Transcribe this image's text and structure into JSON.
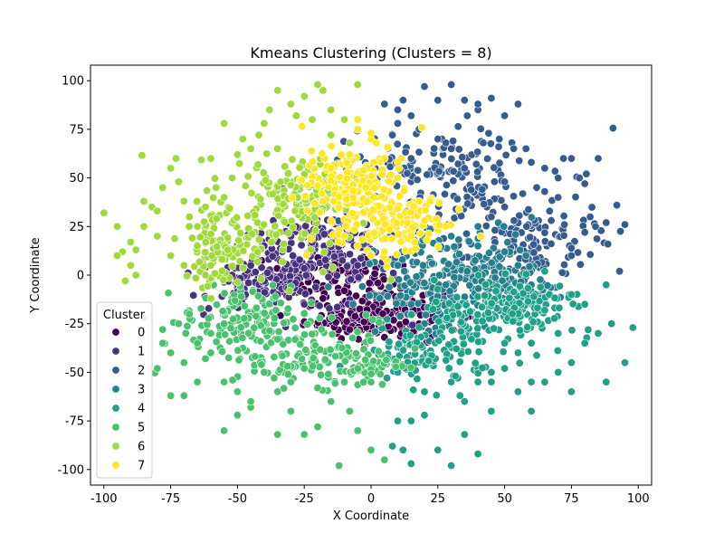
{
  "chart_data": {
    "type": "scatter",
    "title": "Kmeans Clustering (Clusters = 8)",
    "xlabel": "X Coordinate",
    "ylabel": "Y Coordinate",
    "xlim": [
      -105,
      105
    ],
    "ylim": [
      -108,
      108
    ],
    "x_ticks": [
      -100,
      -75,
      -50,
      -25,
      0,
      25,
      50,
      75,
      100
    ],
    "y_ticks": [
      -100,
      -75,
      -50,
      -25,
      0,
      25,
      50,
      75,
      100
    ],
    "grid": false,
    "legend": {
      "title": "Cluster",
      "location": "lower-left",
      "entries": [
        "0",
        "1",
        "2",
        "3",
        "4",
        "5",
        "6",
        "7"
      ]
    },
    "colors": {
      "0": "#440154",
      "1": "#46327e",
      "2": "#365c8d",
      "3": "#277f8e",
      "4": "#1fa187",
      "5": "#4ac16d",
      "6": "#9fda3a",
      "7": "#fde725"
    },
    "series": [
      {
        "name": "0",
        "regions": [
          [
            -12,
            0,
            14,
            6
          ],
          [
            10,
            -18,
            12,
            8
          ],
          [
            -5,
            -22,
            10,
            5
          ]
        ],
        "points": [
          [
            -10,
            -8
          ],
          [
            -15,
            -20
          ],
          [
            -8,
            -28
          ],
          [
            0,
            -30
          ],
          [
            15,
            -20
          ],
          [
            20,
            -5
          ],
          [
            12,
            5
          ],
          [
            -2,
            8
          ],
          [
            -13,
            2
          ],
          [
            5,
            -32
          ],
          [
            -18,
            -12
          ],
          [
            18,
            -25
          ]
        ]
      },
      {
        "name": "1",
        "regions": [
          [
            -25,
            5,
            18,
            12
          ],
          [
            -40,
            -5,
            10,
            6
          ],
          [
            -15,
            18,
            10,
            6
          ]
        ],
        "points": [
          [
            -45,
            5
          ],
          [
            -50,
            -5
          ],
          [
            -40,
            15
          ],
          [
            -30,
            20
          ],
          [
            -20,
            25
          ],
          [
            -5,
            15
          ],
          [
            -35,
            -10
          ],
          [
            -52,
            0
          ],
          [
            -25,
            -15
          ],
          [
            -10,
            28
          ],
          [
            -47,
            -10
          ],
          [
            -5,
            5
          ]
        ]
      },
      {
        "name": "2",
        "regions": [
          [
            40,
            35,
            25,
            20
          ],
          [
            60,
            15,
            12,
            10
          ],
          [
            20,
            55,
            15,
            10
          ]
        ],
        "points": [
          [
            5,
            88
          ],
          [
            10,
            85
          ],
          [
            15,
            82
          ],
          [
            18,
            75
          ],
          [
            20,
            97
          ],
          [
            25,
            90
          ],
          [
            30,
            98
          ],
          [
            35,
            90
          ],
          [
            40,
            85
          ],
          [
            40,
            88
          ],
          [
            45,
            91
          ],
          [
            50,
            82
          ],
          [
            55,
            88
          ],
          [
            58,
            65
          ],
          [
            60,
            58
          ],
          [
            65,
            55
          ],
          [
            70,
            50
          ],
          [
            72,
            60
          ],
          [
            75,
            60
          ],
          [
            78,
            50
          ],
          [
            80,
            47
          ],
          [
            82,
            30
          ],
          [
            85,
            60
          ],
          [
            88,
            27
          ],
          [
            92,
            36
          ],
          [
            95,
            26
          ],
          [
            93,
            2
          ],
          [
            75,
            10
          ],
          [
            80,
            22
          ],
          [
            70,
            40
          ],
          [
            65,
            43
          ],
          [
            50,
            35
          ],
          [
            45,
            30
          ],
          [
            25,
            70
          ],
          [
            28,
            68
          ],
          [
            30,
            65
          ],
          [
            35,
            55
          ],
          [
            15,
            60
          ],
          [
            8,
            72
          ],
          [
            12,
            90
          ],
          [
            10,
            78
          ],
          [
            36,
            82
          ],
          [
            42,
            68
          ],
          [
            48,
            70
          ],
          [
            50,
            48
          ],
          [
            62,
            45
          ],
          [
            84,
            25
          ]
        ]
      },
      {
        "name": "3",
        "regions": [
          [
            35,
            5,
            15,
            12
          ],
          [
            20,
            -10,
            12,
            10
          ],
          [
            50,
            -5,
            8,
            6
          ]
        ],
        "points": [
          [
            10,
            5
          ],
          [
            20,
            20
          ],
          [
            25,
            25
          ],
          [
            30,
            20
          ],
          [
            40,
            15
          ],
          [
            50,
            12
          ],
          [
            55,
            5
          ],
          [
            60,
            -5
          ],
          [
            45,
            -15
          ],
          [
            35,
            -20
          ],
          [
            20,
            -25
          ],
          [
            15,
            -15
          ],
          [
            28,
            -5
          ],
          [
            58,
            10
          ],
          [
            40,
            25
          ]
        ]
      },
      {
        "name": "4",
        "regions": [
          [
            40,
            -25,
            15,
            10
          ],
          [
            20,
            -42,
            12,
            8
          ],
          [
            55,
            -15,
            10,
            6
          ]
        ],
        "points": [
          [
            10,
            -50
          ],
          [
            20,
            -60
          ],
          [
            30,
            -55
          ],
          [
            35,
            -65
          ],
          [
            40,
            -55
          ],
          [
            45,
            -50
          ],
          [
            50,
            -48
          ],
          [
            55,
            -60
          ],
          [
            60,
            -70
          ],
          [
            65,
            -55
          ],
          [
            70,
            -50
          ],
          [
            75,
            -45
          ],
          [
            80,
            -35
          ],
          [
            85,
            -30
          ],
          [
            90,
            -25
          ],
          [
            98,
            -27
          ],
          [
            95,
            -45
          ],
          [
            88,
            -55
          ],
          [
            75,
            -60
          ],
          [
            60,
            -55
          ],
          [
            55,
            -40
          ],
          [
            50,
            -35
          ],
          [
            45,
            -70
          ],
          [
            35,
            -82
          ],
          [
            30,
            -98
          ],
          [
            25,
            -90
          ],
          [
            15,
            -97
          ],
          [
            12,
            -90
          ],
          [
            8,
            -88
          ],
          [
            20,
            -72
          ],
          [
            15,
            -75
          ],
          [
            70,
            -30
          ],
          [
            80,
            -15
          ],
          [
            88,
            -5
          ],
          [
            75,
            -10
          ],
          [
            65,
            -18
          ],
          [
            65,
            2
          ],
          [
            60,
            -35
          ],
          [
            40,
            -92
          ],
          [
            45,
            -55
          ],
          [
            10,
            -75
          ]
        ]
      },
      {
        "name": "5",
        "regions": [
          [
            -35,
            -35,
            18,
            10
          ],
          [
            -50,
            -22,
            10,
            8
          ],
          [
            -12,
            -45,
            12,
            6
          ]
        ],
        "points": [
          [
            -55,
            -25
          ],
          [
            -60,
            -30
          ],
          [
            -65,
            -35
          ],
          [
            -70,
            -45
          ],
          [
            -75,
            -40
          ],
          [
            -80,
            -48
          ],
          [
            -78,
            -35
          ],
          [
            -72,
            -25
          ],
          [
            -68,
            -20
          ],
          [
            -85,
            -22
          ],
          [
            -60,
            -40
          ],
          [
            -55,
            -55
          ],
          [
            -50,
            -60
          ],
          [
            -45,
            -68
          ],
          [
            -40,
            -50
          ],
          [
            -35,
            -60
          ],
          [
            -30,
            -55
          ],
          [
            -25,
            -48
          ],
          [
            -20,
            -58
          ],
          [
            -15,
            -65
          ],
          [
            -10,
            -55
          ],
          [
            -5,
            -48
          ],
          [
            0,
            -55
          ],
          [
            -20,
            -78
          ],
          [
            -25,
            -82
          ],
          [
            -35,
            -82
          ],
          [
            -55,
            -80
          ],
          [
            -45,
            -65
          ],
          [
            -50,
            -72
          ],
          [
            -12,
            -98
          ],
          [
            -5,
            -80
          ],
          [
            0,
            -90
          ],
          [
            5,
            -95
          ],
          [
            -8,
            -70
          ],
          [
            -70,
            -62
          ],
          [
            -65,
            -55
          ],
          [
            -78,
            -28
          ],
          [
            -75,
            -62
          ],
          [
            -62,
            -43
          ],
          [
            -30,
            -70
          ]
        ]
      },
      {
        "name": "6",
        "regions": [
          [
            -35,
            30,
            15,
            15
          ],
          [
            -55,
            15,
            8,
            10
          ],
          [
            -25,
            45,
            10,
            8
          ]
        ],
        "points": [
          [
            -100,
            32
          ],
          [
            -95,
            25
          ],
          [
            -93,
            12
          ],
          [
            -90,
            17
          ],
          [
            -88,
            13
          ],
          [
            -85,
            38
          ],
          [
            -82,
            35
          ],
          [
            -80,
            33
          ],
          [
            -78,
            45
          ],
          [
            -75,
            55
          ],
          [
            -73,
            60
          ],
          [
            -72,
            48
          ],
          [
            -70,
            38
          ],
          [
            -68,
            30
          ],
          [
            -65,
            25
          ],
          [
            -62,
            35
          ],
          [
            -60,
            60
          ],
          [
            -58,
            45
          ],
          [
            -55,
            40
          ],
          [
            -52,
            50
          ],
          [
            -50,
            62
          ],
          [
            -48,
            70
          ],
          [
            -45,
            65
          ],
          [
            -42,
            72
          ],
          [
            -40,
            78
          ],
          [
            -38,
            85
          ],
          [
            -35,
            95
          ],
          [
            -30,
            88
          ],
          [
            -25,
            92
          ],
          [
            -22,
            80
          ],
          [
            -20,
            98
          ],
          [
            -18,
            95
          ],
          [
            -15,
            85
          ],
          [
            -10,
            80
          ],
          [
            -8,
            68
          ],
          [
            -5,
            75
          ],
          [
            -90,
            5
          ],
          [
            -95,
            10
          ],
          [
            -88,
            0
          ],
          [
            -85,
            25
          ],
          [
            -80,
            20
          ],
          [
            -75,
            10
          ],
          [
            -70,
            5
          ],
          [
            -65,
            15
          ],
          [
            -62,
            0
          ],
          [
            -60,
            5
          ],
          [
            -92,
            -3
          ],
          [
            -5,
            98
          ],
          [
            -15,
            72
          ],
          [
            -28,
            82
          ],
          [
            -68,
            25
          ],
          [
            -55,
            78
          ],
          [
            -35,
            65
          ]
        ]
      },
      {
        "name": "7",
        "regions": [
          [
            0,
            35,
            12,
            15
          ],
          [
            -10,
            48,
            8,
            8
          ],
          [
            8,
            28,
            10,
            8
          ]
        ],
        "points": [
          [
            -10,
            20
          ],
          [
            -5,
            15
          ],
          [
            0,
            10
          ],
          [
            5,
            12
          ],
          [
            15,
            20
          ],
          [
            20,
            28
          ],
          [
            18,
            38
          ],
          [
            10,
            50
          ],
          [
            5,
            60
          ],
          [
            0,
            70
          ],
          [
            -5,
            75
          ],
          [
            -15,
            55
          ],
          [
            -18,
            38
          ],
          [
            -15,
            28
          ],
          [
            -8,
            62
          ],
          [
            2,
            68
          ],
          [
            10,
            58
          ],
          [
            -2,
            45
          ],
          [
            -5,
            80
          ],
          [
            0,
            73
          ]
        ]
      }
    ]
  }
}
